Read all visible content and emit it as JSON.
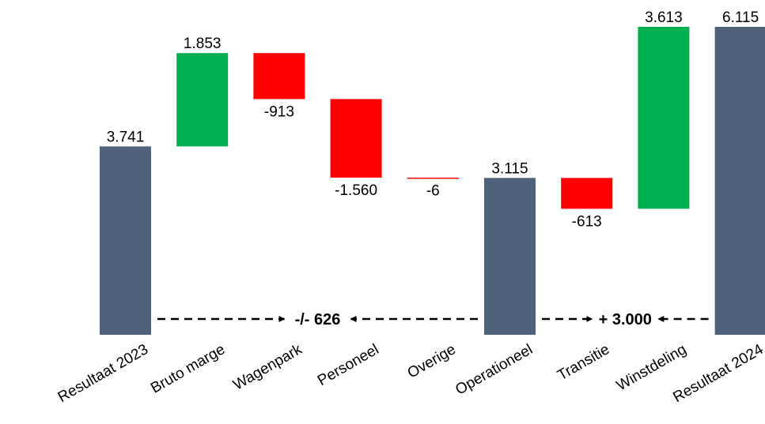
{
  "colors": {
    "total": "#50627b",
    "increase": "#00b050",
    "decrease": "#ff0000",
    "text": "#000000"
  },
  "chart_data": {
    "type": "waterfall",
    "title": "",
    "xlabel": "",
    "ylabel": "",
    "ylim": [
      0,
      6500
    ],
    "grid": false,
    "categories": [
      "Resultaat 2023",
      "Bruto marge",
      "Wagenpark",
      "Personeel",
      "Overige",
      "Operationeel",
      "Transitie",
      "Winstdeling",
      "Resultaat 2024"
    ],
    "bars": [
      {
        "category": "Resultaat 2023",
        "kind": "total",
        "value": 3741,
        "label": "3.741"
      },
      {
        "category": "Bruto marge",
        "kind": "increase",
        "value": 1853,
        "label": "1.853"
      },
      {
        "category": "Wagenpark",
        "kind": "decrease",
        "value": -913,
        "label": "-913"
      },
      {
        "category": "Personeel",
        "kind": "decrease",
        "value": -1560,
        "label": "-1.560"
      },
      {
        "category": "Overige",
        "kind": "decrease",
        "value": -6,
        "label": "-6"
      },
      {
        "category": "Operationeel",
        "kind": "total",
        "value": 3115,
        "label": "3.115"
      },
      {
        "category": "Transitie",
        "kind": "decrease",
        "value": -613,
        "label": "-613"
      },
      {
        "category": "Winstdeling",
        "kind": "increase",
        "value": 3613,
        "label": "3.613"
      },
      {
        "category": "Resultaat 2024",
        "kind": "total",
        "value": 6115,
        "label": "6.115"
      }
    ],
    "annotations": [
      {
        "text": "-/- 626",
        "between": [
          "Resultaat 2023",
          "Operationeel"
        ]
      },
      {
        "text": "+ 3.000",
        "between": [
          "Operationeel",
          "Resultaat 2024"
        ]
      }
    ]
  }
}
